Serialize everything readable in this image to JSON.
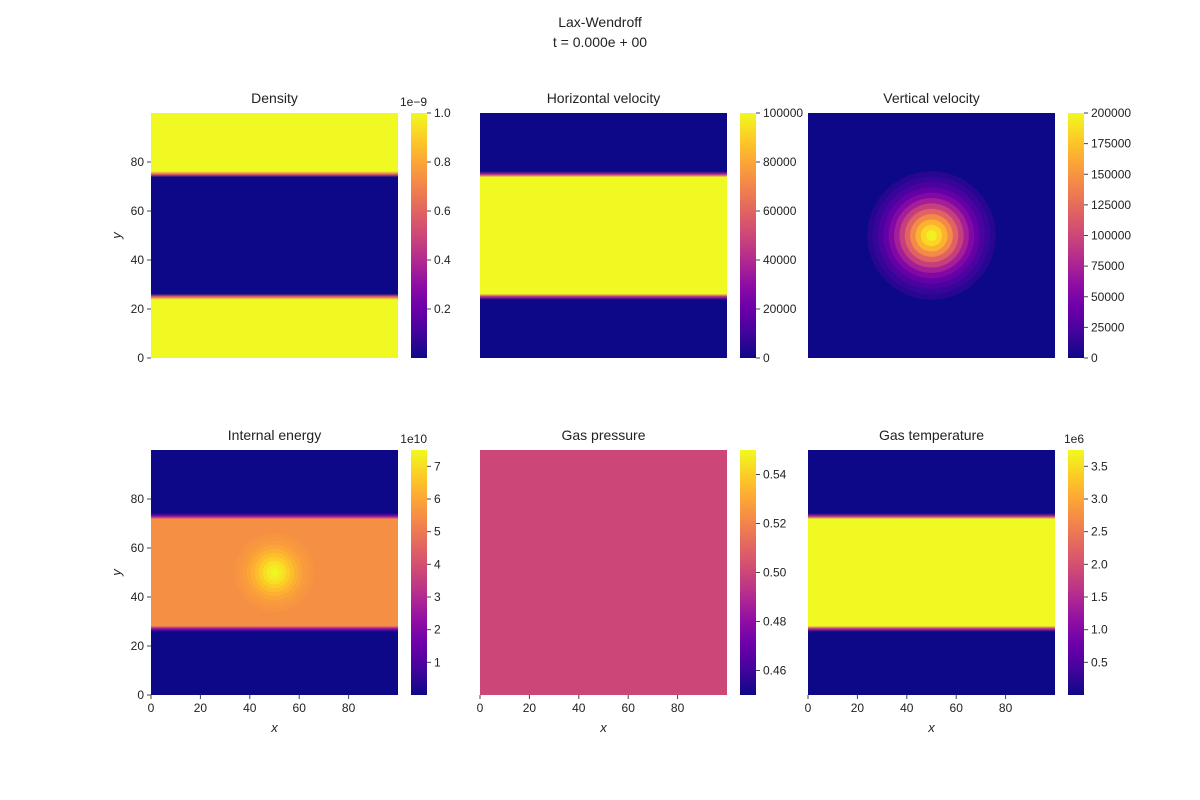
{
  "figure": {
    "title": "Lax-Wendroff",
    "subtitle": "t = 0.000e + 00"
  },
  "colormap": {
    "name": "plasma",
    "stops": [
      "#0d0887",
      "#41049d",
      "#6a00a8",
      "#8f0da4",
      "#b12a90",
      "#cc4778",
      "#e16462",
      "#f2844b",
      "#fca636",
      "#fcce25",
      "#f0f921"
    ]
  },
  "chart_data": [
    {
      "type": "heatmap",
      "title": "Density",
      "xlabel": "",
      "ylabel": "y",
      "xlim": [
        0,
        100
      ],
      "ylim": [
        0,
        100
      ],
      "xticks": [],
      "yticks": [
        0,
        20,
        40,
        60,
        80
      ],
      "field": "bands",
      "band_bounds": [
        25,
        75
      ],
      "outer_value": 1.0,
      "inner_value": 0.0,
      "vmin": 0.0,
      "vmax": 1.0,
      "colorbar_ticks": [
        0.2,
        0.4,
        0.6,
        0.8,
        1.0
      ],
      "colorbar_tick_labels": [
        "0.2",
        "0.4",
        "0.6",
        "0.8",
        "1.0"
      ],
      "colorbar_exponent": "1e−9"
    },
    {
      "type": "heatmap",
      "title": "Horizontal velocity",
      "xlabel": "",
      "ylabel": "",
      "xlim": [
        0,
        100
      ],
      "ylim": [
        0,
        100
      ],
      "xticks": [],
      "yticks": [],
      "field": "bands",
      "band_bounds": [
        25,
        75
      ],
      "outer_value": 0,
      "inner_value": 100000,
      "vmin": 0,
      "vmax": 100000,
      "colorbar_ticks": [
        0,
        20000,
        40000,
        60000,
        80000,
        100000
      ],
      "colorbar_tick_labels": [
        "0",
        "20000",
        "40000",
        "60000",
        "80000",
        "100000"
      ],
      "colorbar_exponent": ""
    },
    {
      "type": "heatmap",
      "title": "Vertical velocity",
      "xlabel": "",
      "ylabel": "",
      "xlim": [
        0,
        100
      ],
      "ylim": [
        0,
        100
      ],
      "xticks": [],
      "yticks": [],
      "field": "blob",
      "center": [
        50,
        50
      ],
      "radius": 26,
      "peak_value": 200000,
      "background_value": 0,
      "levels": 12,
      "vmin": 0,
      "vmax": 200000,
      "colorbar_ticks": [
        0,
        25000,
        50000,
        75000,
        100000,
        125000,
        150000,
        175000,
        200000
      ],
      "colorbar_tick_labels": [
        "0",
        "25000",
        "50000",
        "75000",
        "100000",
        "125000",
        "150000",
        "175000",
        "200000"
      ],
      "colorbar_exponent": ""
    },
    {
      "type": "heatmap",
      "title": "Internal energy",
      "xlabel": "x",
      "ylabel": "y",
      "xlim": [
        0,
        100
      ],
      "ylim": [
        0,
        100
      ],
      "xticks": [
        0,
        20,
        40,
        60,
        80
      ],
      "yticks": [
        0,
        20,
        40,
        60,
        80
      ],
      "field": "bands_blob",
      "band_bounds": [
        27,
        73
      ],
      "outer_value": 0.0,
      "inner_value": 5.5,
      "center": [
        50,
        50
      ],
      "radius": 16,
      "peak_value": 7.5,
      "levels": 10,
      "vmin": 0.0,
      "vmax": 7.5,
      "colorbar_ticks": [
        1,
        2,
        3,
        4,
        5,
        6,
        7
      ],
      "colorbar_tick_labels": [
        "1",
        "2",
        "3",
        "4",
        "5",
        "6",
        "7"
      ],
      "colorbar_exponent": "1e10"
    },
    {
      "type": "heatmap",
      "title": "Gas pressure",
      "xlabel": "x",
      "ylabel": "",
      "xlim": [
        0,
        100
      ],
      "ylim": [
        0,
        100
      ],
      "xticks": [
        0,
        20,
        40,
        60,
        80
      ],
      "yticks": [],
      "field": "uniform",
      "value": 0.5,
      "vmin": 0.45,
      "vmax": 0.55,
      "colorbar_ticks": [
        0.46,
        0.48,
        0.5,
        0.52,
        0.54
      ],
      "colorbar_tick_labels": [
        "0.46",
        "0.48",
        "0.50",
        "0.52",
        "0.54"
      ],
      "colorbar_exponent": ""
    },
    {
      "type": "heatmap",
      "title": "Gas temperature",
      "xlabel": "x",
      "ylabel": "",
      "xlim": [
        0,
        100
      ],
      "ylim": [
        0,
        100
      ],
      "xticks": [
        0,
        20,
        40,
        60,
        80
      ],
      "yticks": [],
      "field": "bands",
      "band_bounds": [
        27,
        73
      ],
      "outer_value": 0.0,
      "inner_value": 3.75,
      "vmin": 0.0,
      "vmax": 3.75,
      "colorbar_ticks": [
        0.5,
        1.0,
        1.5,
        2.0,
        2.5,
        3.0,
        3.5
      ],
      "colorbar_tick_labels": [
        "0.5",
        "1.0",
        "1.5",
        "2.0",
        "2.5",
        "3.0",
        "3.5"
      ],
      "colorbar_exponent": "1e6"
    }
  ]
}
